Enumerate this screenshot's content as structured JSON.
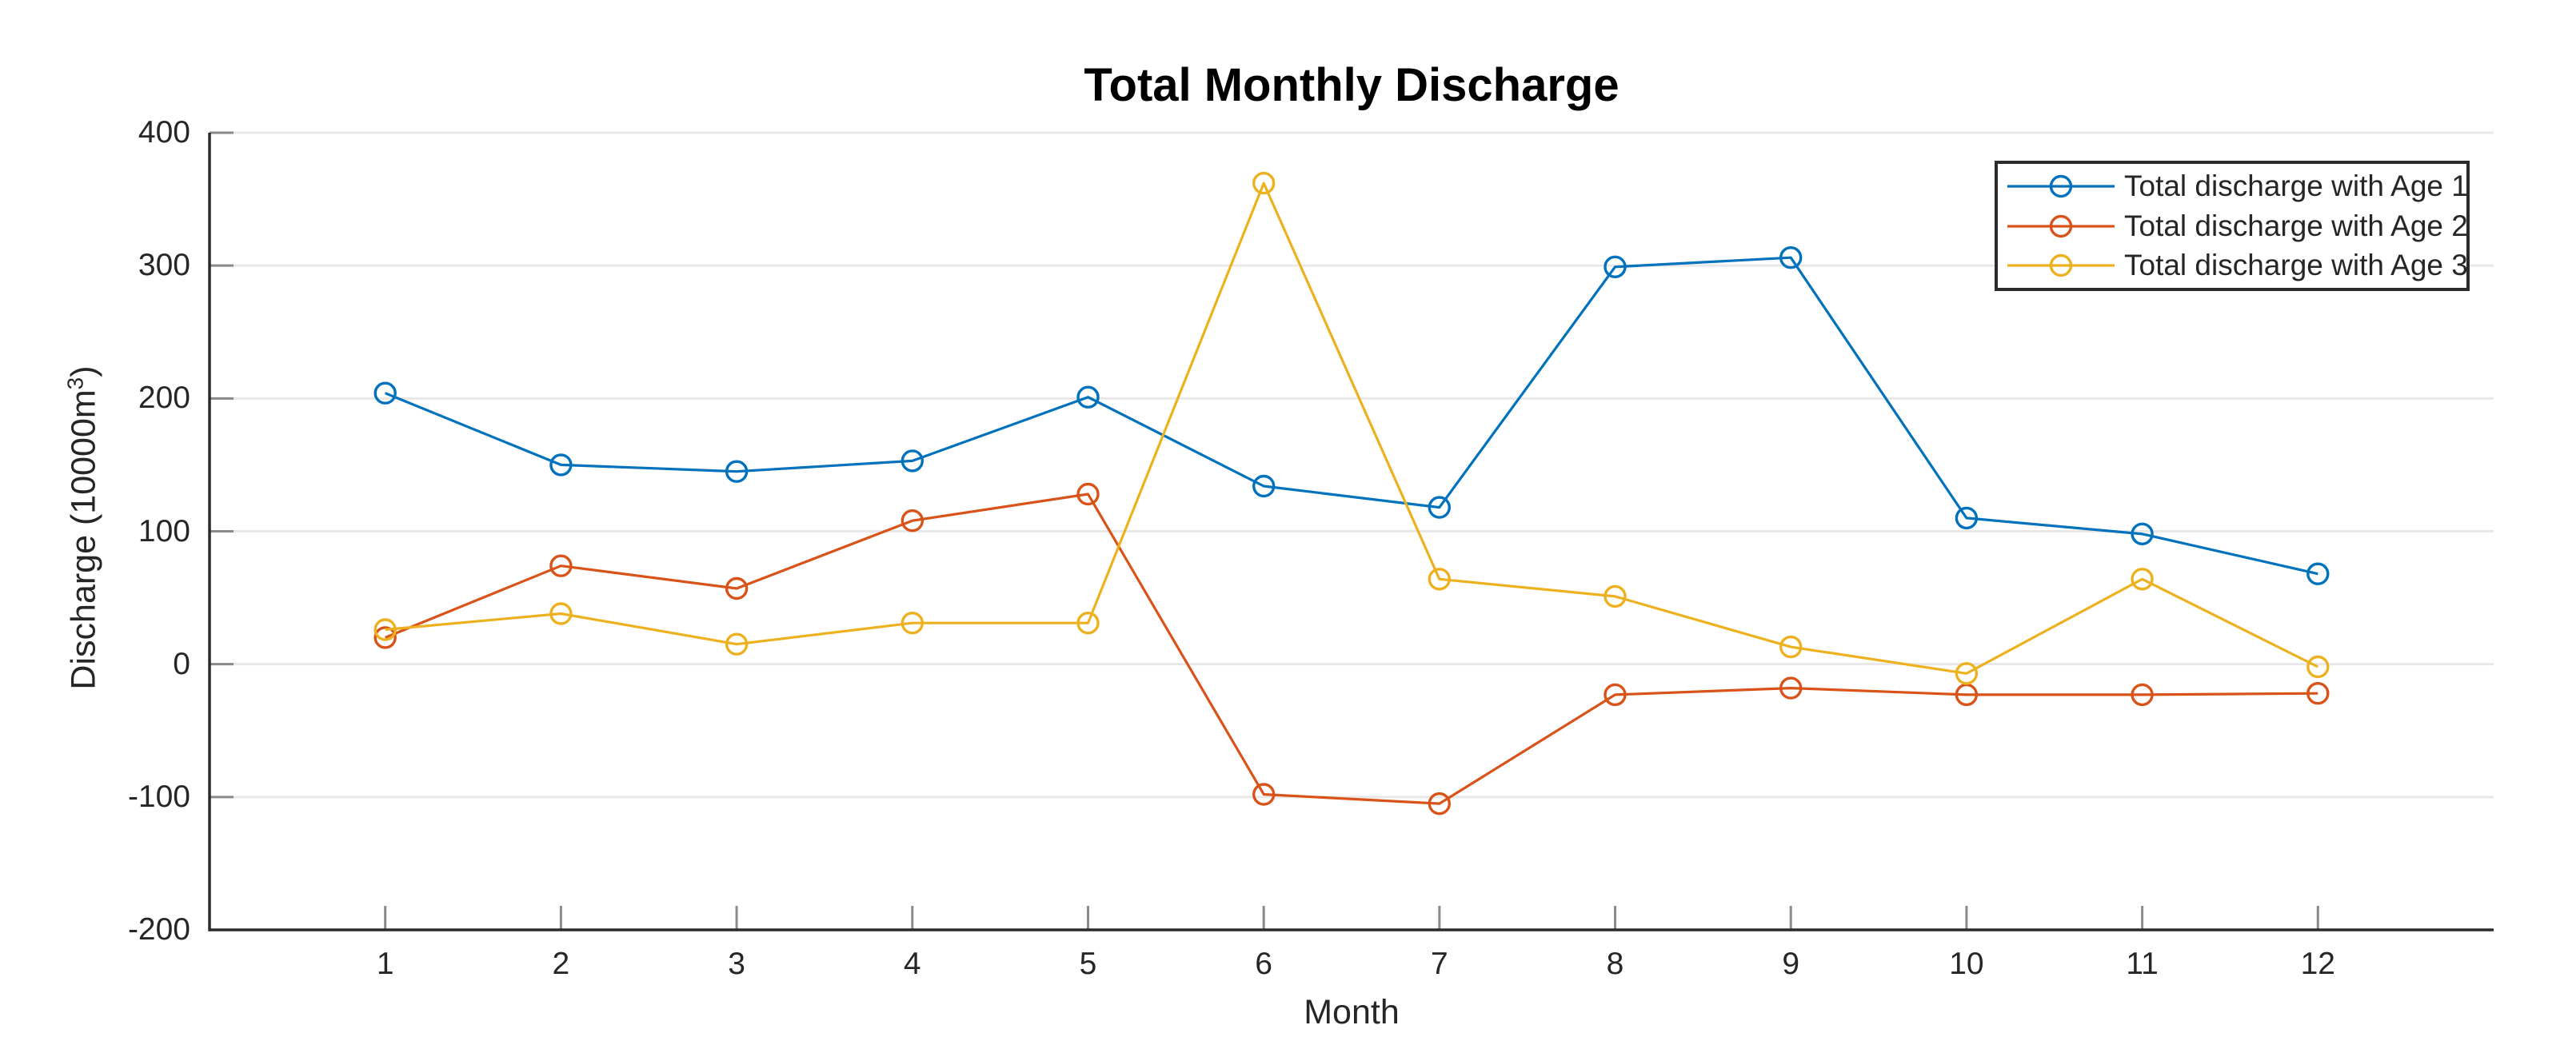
{
  "figure": {
    "title": "Total Monthly Discharge",
    "xlabel": "Month",
    "ylabel_main": "Discharge (10000m",
    "ylabel_sup": "3",
    "ylabel_close": ")"
  },
  "chart_data": {
    "type": "line",
    "title": "Total Monthly Discharge",
    "xlabel": "Month",
    "ylabel": "Discharge (10000m³)",
    "x": [
      1,
      2,
      3,
      4,
      5,
      6,
      7,
      8,
      9,
      10,
      11,
      12
    ],
    "series": [
      {
        "name": "Total discharge with Age 1",
        "color": "#0072BD",
        "marker": "circle-open",
        "values": [
          204,
          150,
          145,
          153,
          201,
          134,
          118,
          299,
          306,
          110,
          98,
          68
        ]
      },
      {
        "name": "Total discharge with Age 2",
        "color": "#D95319",
        "marker": "circle-open",
        "values": [
          20,
          74,
          57,
          108,
          128,
          -98,
          -105,
          -23,
          -18,
          -23,
          -23,
          -22
        ]
      },
      {
        "name": "Total discharge with Age 3",
        "color": "#EDB120",
        "marker": "circle-open",
        "values": [
          26,
          38,
          15,
          31,
          31,
          362,
          64,
          51,
          13,
          -7,
          64,
          -2
        ]
      }
    ],
    "xlim": [
      0,
      13
    ],
    "ylim": [
      -200,
      400
    ],
    "xticks": [
      1,
      2,
      3,
      4,
      5,
      6,
      7,
      8,
      9,
      10,
      11,
      12
    ],
    "yticks": [
      400,
      300,
      200,
      100,
      0,
      -100,
      -200
    ],
    "grid": "y-only",
    "legend_position": "top-right",
    "colors": {
      "axis": "#2B2B2B",
      "tick": "#8A8A8A",
      "grid": "#E8E8E8",
      "text": "#262626",
      "title": "#000000",
      "background": "#FFFFFF"
    }
  }
}
